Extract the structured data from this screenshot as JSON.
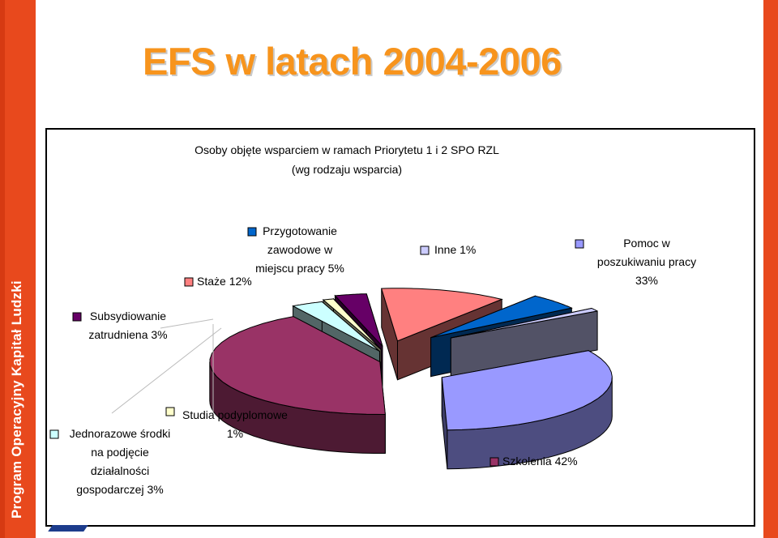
{
  "slide": {
    "title": "EFS w latach 2004-2006",
    "side_text": "Program Operacyjny Kapitał Ludzki"
  },
  "chart_data": {
    "type": "pie",
    "title_lines": [
      "Osoby objęte wsparciem w ramach Priorytetu 1 i 2 SPO RZL",
      "(wg rodzaju wsparcia)"
    ],
    "slices": [
      {
        "key": "pomoc",
        "label_lines": [
          "Pomoc w",
          "poszukiwaniu pracy",
          "33%"
        ],
        "value": 33,
        "color": "#9999ff"
      },
      {
        "key": "szkolenia",
        "label_lines": [
          "Szkolenia  42%"
        ],
        "value": 42,
        "color": "#993366"
      },
      {
        "key": "jednorazowe",
        "label_lines": [
          "Jednorazowe środki",
          "na podjęcie",
          "działalności",
          "gospodarczej 3%"
        ],
        "value": 3,
        "color": "#ccffff"
      },
      {
        "key": "studia",
        "label_lines": [
          "Studia podyplomowe",
          "1%"
        ],
        "value": 1,
        "color": "#ffffcc"
      },
      {
        "key": "subsydiowanie",
        "label_lines": [
          "Subsydiowanie",
          "zatrudniena 3%"
        ],
        "value": 3,
        "color": "#660066"
      },
      {
        "key": "staze",
        "label_lines": [
          "Staże 12%"
        ],
        "value": 12,
        "color": "#ff8080"
      },
      {
        "key": "przygotowanie",
        "label_lines": [
          "Przygotowanie",
          "zawodowe w",
          "miejscu pracy 5%"
        ],
        "value": 5,
        "color": "#0066cc"
      },
      {
        "key": "inne",
        "label_lines": [
          "Inne 1%"
        ],
        "value": 1,
        "color": "#ccccff"
      }
    ],
    "legend_placement": "labels around pie with leader lines"
  }
}
